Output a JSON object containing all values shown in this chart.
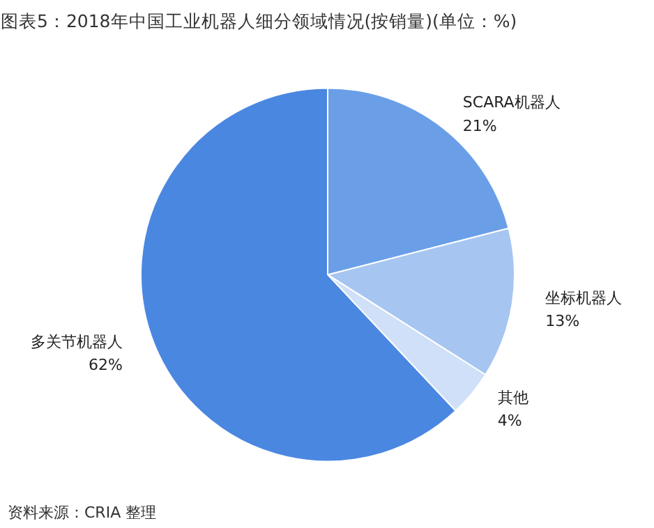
{
  "chart_data": {
    "type": "pie",
    "title": "图表5：2018年中国工业机器人细分领域情况(按销量)(单位：%)",
    "categories": [
      "SCARA机器人",
      "坐标机器人",
      "其他",
      "多关节机器人"
    ],
    "values": [
      21,
      13,
      4,
      62
    ],
    "value_labels": [
      "21%",
      "13%",
      "4%",
      "62%"
    ],
    "colors": [
      "#6a9fe8",
      "#a6c6f1",
      "#cfe0f8",
      "#4a87e1"
    ],
    "annotations": [
      "资料来源：CRIA 整理"
    ]
  }
}
